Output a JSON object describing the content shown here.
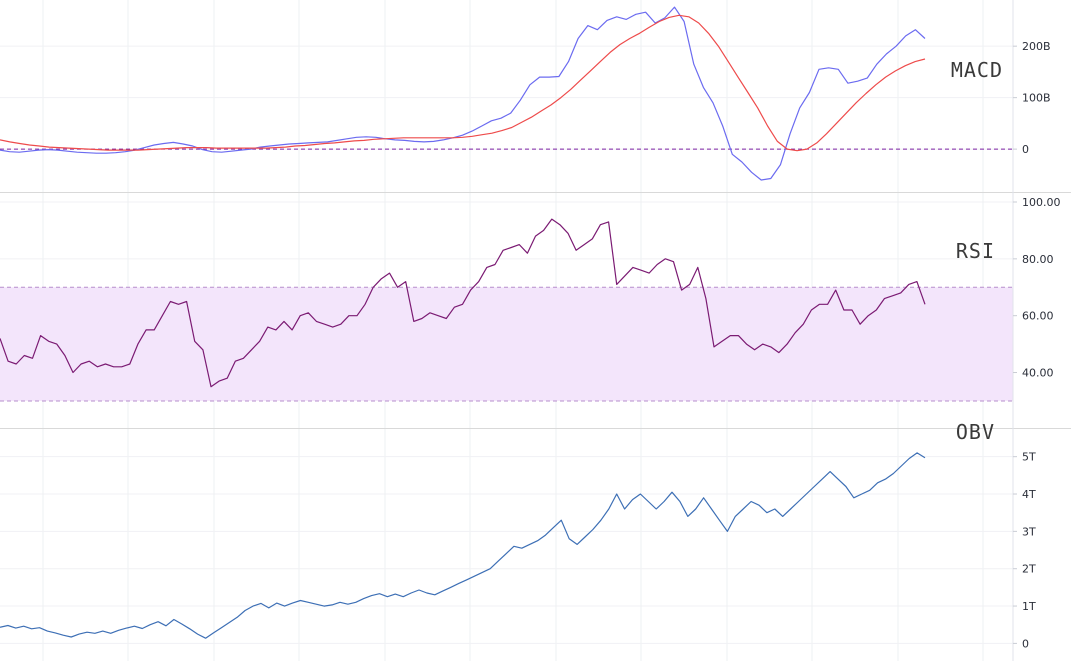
{
  "chart_data": [
    {
      "type": "line",
      "title": "MACD",
      "ylim": [
        -60,
        280
      ],
      "y_ticks": [
        {
          "value": 200,
          "label": "200B"
        },
        {
          "value": 100,
          "label": "100B"
        },
        {
          "value": 0,
          "label": "0"
        }
      ],
      "reference_lines": [
        0
      ],
      "colors": {
        "macd": "#6b6bf0",
        "signal": "#ee4b4b",
        "zero_line": "#7b1fa2"
      },
      "series": [
        {
          "key": "macd",
          "values": [
            -2,
            -5,
            -6,
            -4,
            -2,
            -1,
            -2,
            -4,
            -6,
            -7,
            -8,
            -8,
            -7,
            -5,
            -2,
            3,
            8,
            11,
            13,
            10,
            6,
            -1,
            -5,
            -6,
            -4,
            -2,
            0,
            4,
            6,
            8,
            10,
            11,
            12,
            13,
            14,
            17,
            20,
            23,
            24,
            23,
            20,
            18,
            17,
            15,
            14,
            15,
            18,
            22,
            27,
            35,
            45,
            55,
            60,
            70,
            95,
            125,
            140,
            140,
            141,
            170,
            215,
            240,
            232,
            250,
            257,
            252,
            262,
            266,
            245,
            255,
            276,
            248,
            165,
            120,
            90,
            45,
            -10,
            -25,
            -45,
            -60,
            -57,
            -30,
            30,
            80,
            110,
            155,
            158,
            155,
            128,
            132,
            138,
            165,
            185,
            200,
            220,
            232,
            215
          ]
        },
        {
          "key": "signal",
          "values": [
            18,
            14,
            11,
            8,
            6,
            4,
            3,
            2,
            1,
            0,
            -1,
            -2,
            -2,
            -2,
            -2,
            -1,
            0,
            1,
            2,
            3,
            3,
            3,
            2,
            2,
            2,
            2,
            2,
            2,
            3,
            4,
            6,
            7,
            9,
            11,
            12,
            14,
            16,
            17,
            19,
            20,
            21,
            22,
            22,
            22,
            22,
            22,
            22,
            23,
            25,
            28,
            31,
            36,
            42,
            52,
            62,
            74,
            86,
            100,
            116,
            134,
            152,
            170,
            188,
            203,
            215,
            225,
            237,
            248,
            256,
            260,
            257,
            245,
            225,
            200,
            170,
            140,
            110,
            80,
            45,
            15,
            0,
            -3,
            0,
            12,
            30,
            50,
            70,
            90,
            108,
            125,
            140,
            152,
            162,
            170,
            175
          ]
        }
      ]
    },
    {
      "type": "line",
      "title": "RSI",
      "ylim": [
        24,
        100
      ],
      "y_ticks": [
        {
          "value": 100,
          "label": "100.00"
        },
        {
          "value": 80,
          "label": "80.00"
        },
        {
          "value": 60,
          "label": "60.00"
        },
        {
          "value": 40,
          "label": "40.00"
        }
      ],
      "band": [
        30,
        70
      ],
      "colors": {
        "rsi": "#7b1b73",
        "band_fill": "#f3e5fb",
        "band_border": "#b78fcd"
      },
      "series": [
        {
          "key": "rsi",
          "values": [
            52,
            44,
            43,
            46,
            45,
            53,
            51,
            50,
            46,
            40,
            43,
            44,
            42,
            43,
            42,
            42,
            43,
            50,
            55,
            55,
            60,
            65,
            64,
            65,
            51,
            48,
            35,
            37,
            38,
            44,
            45,
            48,
            51,
            56,
            55,
            58,
            55,
            60,
            61,
            58,
            57,
            56,
            57,
            60,
            60,
            64,
            70,
            73,
            75,
            70,
            72,
            58,
            59,
            61,
            60,
            59,
            63,
            64,
            69,
            72,
            77,
            78,
            83,
            84,
            85,
            82,
            88,
            90,
            94,
            92,
            89,
            83,
            85,
            87,
            92,
            93,
            71,
            74,
            77,
            76,
            75,
            78,
            80,
            79,
            69,
            71,
            77,
            66,
            49,
            51,
            53,
            53,
            50,
            48,
            50,
            49,
            47,
            50,
            54,
            57,
            62,
            64,
            64,
            69,
            62,
            62,
            57,
            60,
            62,
            66,
            67,
            68,
            71,
            72,
            64
          ]
        }
      ]
    },
    {
      "type": "line",
      "title": "OBV",
      "ylim": [
        -0.15,
        5.5
      ],
      "y_ticks": [
        {
          "value": 5,
          "label": "5T"
        },
        {
          "value": 4,
          "label": "4T"
        },
        {
          "value": 3,
          "label": "3T"
        },
        {
          "value": 2,
          "label": "2T"
        },
        {
          "value": 1,
          "label": "1T"
        },
        {
          "value": 0,
          "label": "0"
        }
      ],
      "colors": {
        "obv": "#3d6fb5"
      },
      "series": [
        {
          "key": "obv",
          "values": [
            0.43,
            0.48,
            0.41,
            0.46,
            0.39,
            0.42,
            0.33,
            0.28,
            0.22,
            0.17,
            0.25,
            0.3,
            0.27,
            0.33,
            0.27,
            0.35,
            0.41,
            0.46,
            0.4,
            0.5,
            0.58,
            0.47,
            0.64,
            0.52,
            0.39,
            0.25,
            0.14,
            0.28,
            0.42,
            0.56,
            0.7,
            0.88,
            1.0,
            1.07,
            0.95,
            1.08,
            1.0,
            1.08,
            1.15,
            1.1,
            1.05,
            1.0,
            1.03,
            1.1,
            1.05,
            1.1,
            1.2,
            1.28,
            1.33,
            1.25,
            1.32,
            1.25,
            1.35,
            1.43,
            1.35,
            1.3,
            1.4,
            1.5,
            1.6,
            1.7,
            1.8,
            1.9,
            2.0,
            2.2,
            2.4,
            2.6,
            2.55,
            2.65,
            2.75,
            2.9,
            3.1,
            3.3,
            2.8,
            2.65,
            2.85,
            3.05,
            3.3,
            3.6,
            4.0,
            3.6,
            3.85,
            4.0,
            3.8,
            3.6,
            3.8,
            4.05,
            3.8,
            3.4,
            3.6,
            3.9,
            3.6,
            3.3,
            3.0,
            3.4,
            3.6,
            3.8,
            3.7,
            3.5,
            3.6,
            3.4,
            3.6,
            3.8,
            4.0,
            4.2,
            4.4,
            4.6,
            4.4,
            4.2,
            3.9,
            4.0,
            4.1,
            4.3,
            4.4,
            4.55,
            4.75,
            4.95,
            5.1,
            4.97
          ]
        }
      ]
    }
  ]
}
